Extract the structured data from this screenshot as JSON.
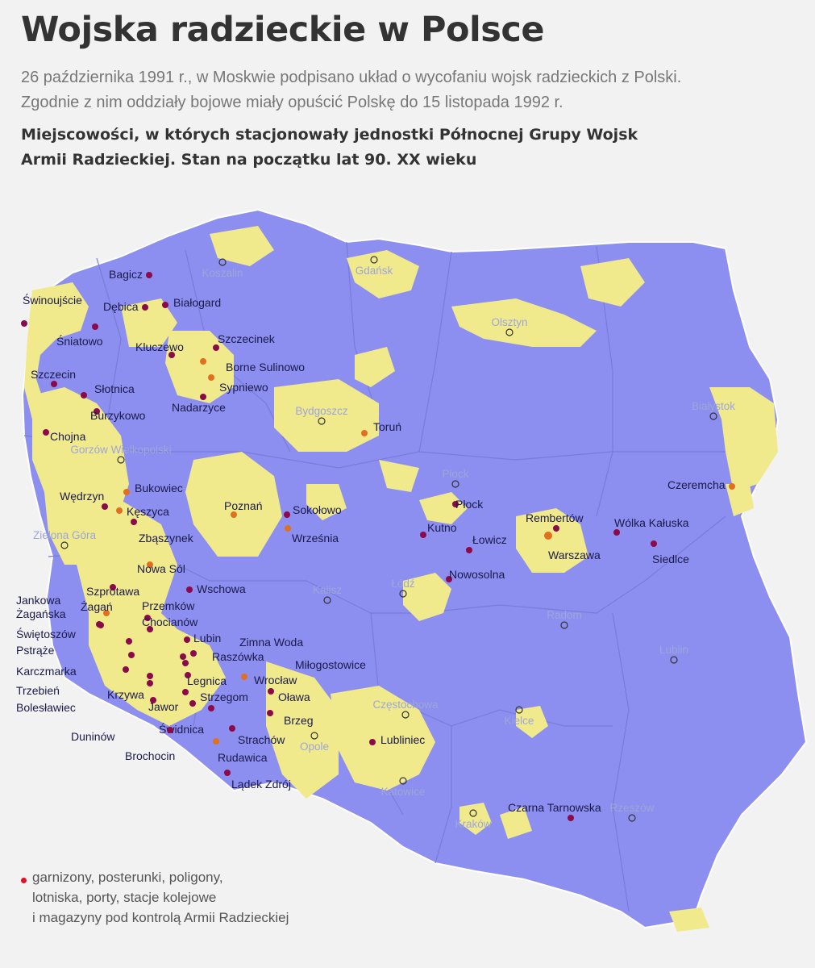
{
  "header": {
    "title": "Wojska radzieckie w Polsce",
    "intro_line1": "26 października 1991 r., w Moskwie podpisano układ o wycofaniu wojsk radzieckich z Polski.",
    "intro_line2": "Zgodnie z nim oddziały bojowe miały opuścić Polskę do 15 listopada 1992 r.",
    "subtitle_line1": "Miejscowości, w których stacjonowały jednostki Północnej Grupy Wojsk",
    "subtitle_line2": "Armii Radzieckiej. Stan na początku lat 90. XX wieku"
  },
  "colors": {
    "territory": "#8c8ef0",
    "soviet_area": "#f0ea8c",
    "border": "#7a7cd8",
    "base_dot": "#8a0a4a",
    "base_dot_highlight": "#e07020",
    "legend_dot": "#e0102a"
  },
  "cities": [
    "Koszalin",
    "Gdańsk",
    "Olsztyn",
    "Białystok",
    "Bydgoszcz",
    "Gorzów Wielkopolski",
    "Zielona Góra",
    "Płock",
    "Kalisz",
    "Łódź",
    "Radom",
    "Lublin",
    "Częstochowa",
    "Kielce",
    "Opole",
    "Katowice",
    "Kraków",
    "Rzeszów"
  ],
  "bases": [
    "Bagicz",
    "Świnoujście",
    "Dębica",
    "Białogard",
    "Śniatowo",
    "Kluczewo",
    "Szczecinek",
    "Borne Sulinowo",
    "Sypniewo",
    "Szczecin",
    "Słotnica",
    "Burzykowo",
    "Nadarzyce",
    "Toruń",
    "Chojna",
    "Czeremcha",
    "Wędrzyn",
    "Bukowiec",
    "Kęszyca",
    "Poznań",
    "Sokołowo",
    "Płock",
    "Rembertów",
    "Wólka Kałuska",
    "Kutno",
    "Łowicz",
    "Warszawa",
    "Siedlce",
    "Zbąszynek",
    "Września",
    "Nowa Sól",
    "Nowosolna",
    "Szprotawa",
    "Wschowa",
    "Jankowa Żagańska",
    "Żagań",
    "Przemków",
    "Świętoszów",
    "Chocianów",
    "Lubin",
    "Zimna Woda",
    "Pstrąże",
    "Raszówka",
    "Miłogostowice",
    "Karczmarka",
    "Legnica",
    "Wrocław",
    "Trzebień",
    "Krzywa",
    "Strzegom",
    "Oława",
    "Bolesławiec",
    "Jawor",
    "Brzeg",
    "Duninów",
    "Świdnica",
    "Strachów",
    "Lubliniec",
    "Brochocin",
    "Rudawica",
    "Lądek Zdrój",
    "Czarna Tarnowska"
  ],
  "legend": {
    "line1": "garnizony, posterunki, poligony,",
    "line2": "lotniska, porty, stacje kolejowe",
    "line3": "i magazyny pod kontrolą Armii Radzieckiej"
  }
}
